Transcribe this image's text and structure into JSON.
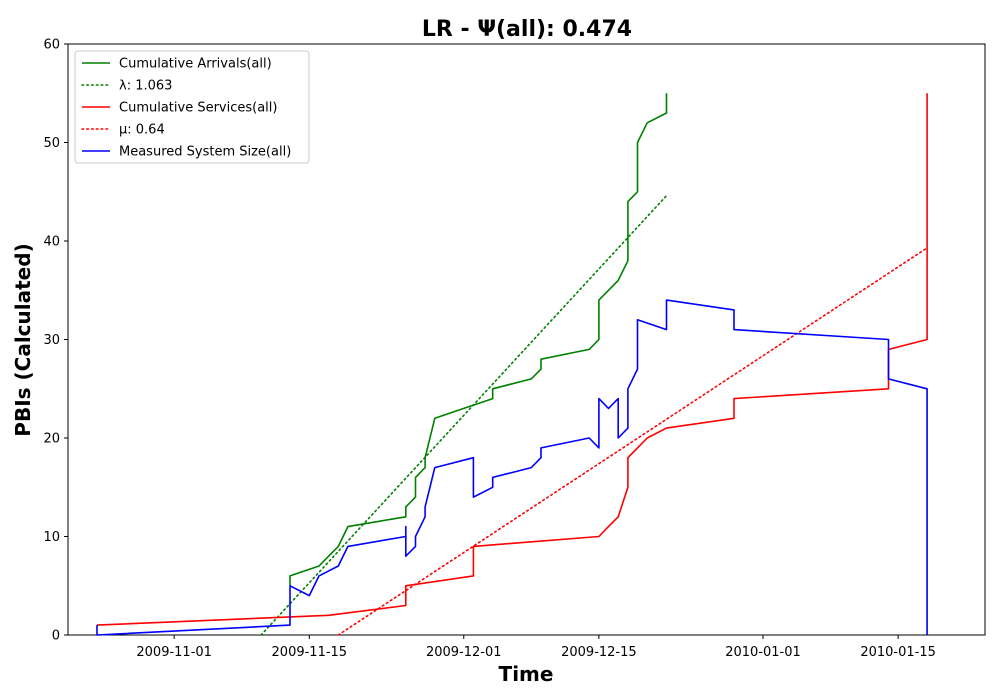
{
  "chart_data": {
    "type": "line",
    "title": "LR -  Ψ(all): 0.474",
    "xlabel": "Time",
    "ylabel": "PBIs (Calculated)",
    "xlim": [
      "2009-10-21",
      "2010-01-24"
    ],
    "ylim": [
      0,
      60
    ],
    "x_ticks": [
      "2009-11-01",
      "2009-11-15",
      "2009-12-01",
      "2009-12-15",
      "2010-01-01",
      "2010-01-15"
    ],
    "y_ticks": [
      0,
      10,
      20,
      30,
      40,
      50,
      60
    ],
    "grid": false,
    "legend_position": "top-left",
    "series": [
      {
        "name": "Cumulative Arrivals(all)",
        "color": "#008000",
        "style": "solid",
        "x": [
          "2009-11-13",
          "2009-11-13",
          "2009-11-16",
          "2009-11-17",
          "2009-11-18",
          "2009-11-19",
          "2009-11-25",
          "2009-11-25",
          "2009-11-26",
          "2009-11-26",
          "2009-11-27",
          "2009-11-27",
          "2009-11-28",
          "2009-12-01",
          "2009-12-04",
          "2009-12-04",
          "2009-12-08",
          "2009-12-09",
          "2009-12-09",
          "2009-12-14",
          "2009-12-15",
          "2009-12-15",
          "2009-12-15",
          "2009-12-17",
          "2009-12-18",
          "2009-12-18",
          "2009-12-19",
          "2009-12-19",
          "2009-12-19",
          "2009-12-20",
          "2009-12-20",
          "2009-12-22",
          "2009-12-22"
        ],
        "y": [
          5,
          6,
          7,
          8,
          9,
          11,
          12,
          13,
          14,
          16,
          17,
          18,
          22,
          23,
          24,
          25,
          26,
          27,
          28,
          29,
          30,
          32,
          34,
          36,
          38,
          44,
          45,
          47,
          50,
          52,
          52,
          53,
          55
        ]
      },
      {
        "name": "λ: 1.063",
        "color": "#008000",
        "style": "dotted",
        "x": [
          "2009-11-10",
          "2009-12-22"
        ],
        "y": [
          0,
          44.6
        ]
      },
      {
        "name": "Cumulative Services(all)",
        "color": "#ff0000",
        "style": "solid",
        "x": [
          "2009-10-24",
          "2009-11-17",
          "2009-11-25",
          "2009-11-25",
          "2009-11-25",
          "2009-12-02",
          "2009-12-02",
          "2009-12-02",
          "2009-12-02",
          "2009-12-15",
          "2009-12-16",
          "2009-12-17",
          "2009-12-18",
          "2009-12-18",
          "2009-12-19",
          "2009-12-20",
          "2009-12-20",
          "2009-12-22",
          "2009-12-29",
          "2009-12-29",
          "2010-01-14",
          "2010-01-14",
          "2010-01-18",
          "2010-01-18",
          "2010-01-18",
          "2010-01-18",
          "2010-01-18"
        ],
        "y": [
          1,
          2,
          3,
          4,
          5,
          6,
          7,
          8,
          9,
          10,
          11,
          12,
          15,
          18,
          19,
          20,
          20,
          21,
          22,
          24,
          25,
          29,
          30,
          34,
          35,
          50,
          55
        ]
      },
      {
        "name": "μ: 0.64",
        "color": "#ff0000",
        "style": "dotted",
        "x": [
          "2009-11-18",
          "2010-01-18"
        ],
        "y": [
          0,
          39.3
        ]
      },
      {
        "name": "Measured System Size(all)",
        "color": "#0000ff",
        "style": "solid",
        "x": [
          "2009-10-24",
          "2009-10-24",
          "2009-11-13",
          "2009-11-13",
          "2009-11-15",
          "2009-11-16",
          "2009-11-18",
          "2009-11-19",
          "2009-11-25",
          "2009-11-25",
          "2009-11-25",
          "2009-11-26",
          "2009-11-26",
          "2009-11-27",
          "2009-11-27",
          "2009-11-28",
          "2009-12-02",
          "2009-12-02",
          "2009-12-02",
          "2009-12-02",
          "2009-12-04",
          "2009-12-04",
          "2009-12-08",
          "2009-12-09",
          "2009-12-09",
          "2009-12-14",
          "2009-12-15",
          "2009-12-15",
          "2009-12-16",
          "2009-12-17",
          "2009-12-17",
          "2009-12-17",
          "2009-12-18",
          "2009-12-18",
          "2009-12-19",
          "2009-12-19",
          "2009-12-22",
          "2009-12-22",
          "2009-12-29",
          "2009-12-29",
          "2010-01-14",
          "2010-01-14",
          "2010-01-18",
          "2010-01-18",
          "2010-01-18",
          "2010-01-18"
        ],
        "y": [
          1,
          0,
          1,
          5,
          4,
          6,
          7,
          9,
          10,
          11,
          8,
          9,
          10,
          12,
          13,
          17,
          18,
          17,
          15,
          14,
          15,
          16,
          17,
          18,
          19,
          20,
          19,
          24,
          23,
          24,
          22,
          20,
          21,
          25,
          27,
          32,
          31,
          34,
          33,
          31,
          30,
          26,
          25,
          21,
          20,
          0
        ]
      }
    ],
    "legend": [
      {
        "label": "Cumulative Arrivals(all)",
        "color": "#008000",
        "style": "solid"
      },
      {
        "label": "λ: 1.063",
        "color": "#008000",
        "style": "dotted"
      },
      {
        "label": "Cumulative Services(all)",
        "color": "#ff0000",
        "style": "solid"
      },
      {
        "label": "μ: 0.64",
        "color": "#ff0000",
        "style": "dotted"
      },
      {
        "label": "Measured System Size(all)",
        "color": "#0000ff",
        "style": "solid"
      }
    ]
  }
}
